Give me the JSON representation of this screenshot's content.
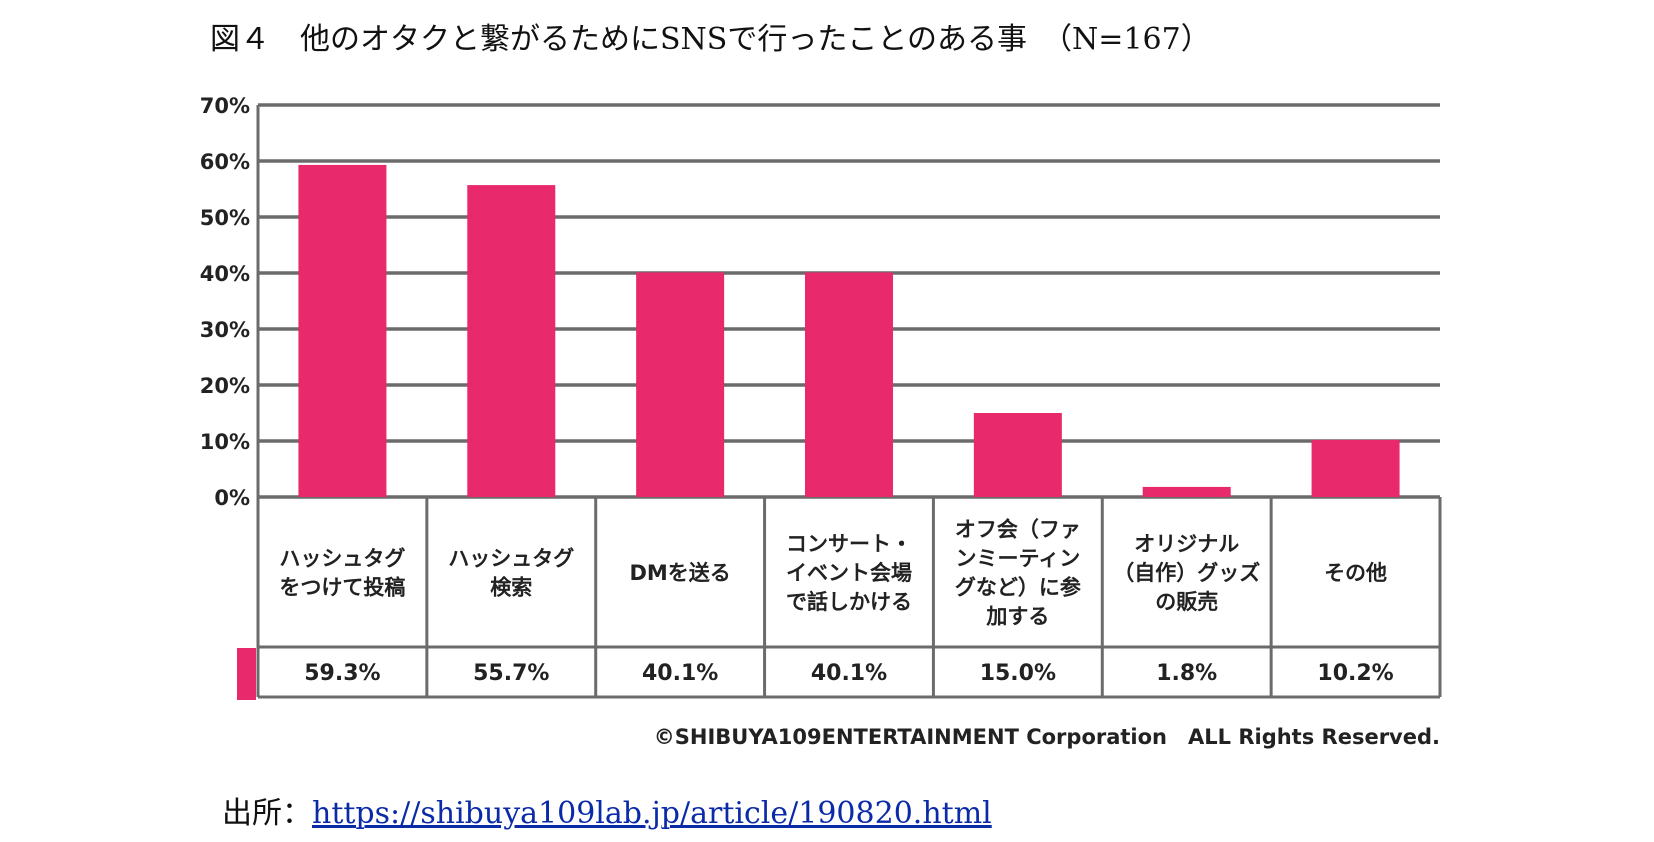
{
  "title": "図４　他のオタクと繋がるためにSNSで行ったことのある事　（N=167）",
  "source": {
    "label": "出所：",
    "url": "https://shibuya109lab.jp/article/190820.html"
  },
  "copyright": "©SHIBUYA109ENTERTAINMENT Corporation　ALL Rights Reserved.",
  "chart_data": {
    "type": "bar",
    "title": "他のオタクと繋がるためにSNSで行ったことのある事",
    "n": "N=167",
    "categories": [
      [
        "ハッシュタグ",
        "をつけて投稿"
      ],
      [
        "ハッシュタグ",
        "検索"
      ],
      [
        "DMを送る"
      ],
      [
        "コンサート・",
        "イベント会場",
        "で話しかける"
      ],
      [
        "オフ会（ファ",
        "ンミーティン",
        "グなど）に参",
        "加する"
      ],
      [
        "オリジナル",
        "（自作）グッズ",
        "の販売"
      ],
      [
        "その他"
      ]
    ],
    "values": [
      59.3,
      55.7,
      40.1,
      40.1,
      15.0,
      1.8,
      10.2
    ],
    "value_labels": [
      "59.3%",
      "55.7%",
      "40.1%",
      "40.1%",
      "15.0%",
      "1.8%",
      "10.2%"
    ],
    "y_ticks": [
      "0%",
      "10%",
      "20%",
      "30%",
      "40%",
      "50%",
      "60%",
      "70%"
    ],
    "ylim": [
      0,
      70
    ],
    "grid": true,
    "legend": "none",
    "bar_color": "#e8296b",
    "grid_color": "#6b6b6b"
  }
}
